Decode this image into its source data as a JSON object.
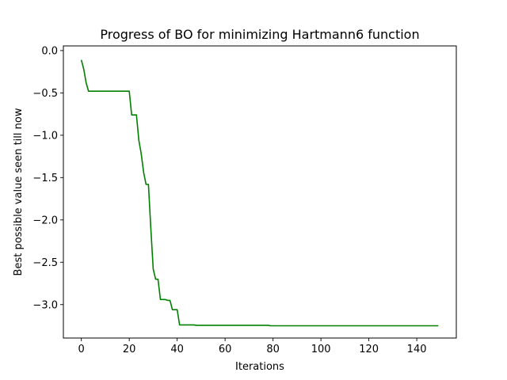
{
  "chart_data": {
    "type": "line",
    "title": "Progress of BO for minimizing Hartmann6 function",
    "xlabel": "Iterations",
    "ylabel": "Best possible value seen till now",
    "xlim": [
      -7.5,
      156.5
    ],
    "ylim": [
      -3.395,
      0.055
    ],
    "xticks": [
      0,
      20,
      40,
      60,
      80,
      100,
      120,
      140
    ],
    "yticks": [
      0.0,
      -0.5,
      -1.0,
      -1.5,
      -2.0,
      -2.5,
      -3.0
    ],
    "xtick_labels": [
      "0",
      "20",
      "40",
      "60",
      "80",
      "100",
      "120",
      "140"
    ],
    "ytick_labels": [
      "0.0",
      "−0.5",
      "−1.0",
      "−1.5",
      "−2.0",
      "−2.5",
      "−3.0"
    ],
    "grid": false,
    "legend": false,
    "line_color": "#008000",
    "series": [
      {
        "x": [
          0,
          1,
          2,
          3,
          4,
          5,
          6,
          7,
          8,
          9,
          10,
          11,
          12,
          13,
          14,
          15,
          16,
          17,
          18,
          19,
          20,
          21,
          22,
          23,
          24,
          25,
          26,
          27,
          28,
          29,
          30,
          31,
          32,
          33,
          34,
          35,
          36,
          37,
          38,
          39,
          40,
          41,
          42,
          43,
          44,
          45,
          46,
          47,
          48,
          60,
          70,
          78,
          79,
          90,
          100,
          110,
          120,
          130,
          140,
          149
        ],
        "y": [
          -0.11,
          -0.22,
          -0.38,
          -0.48,
          -0.48,
          -0.48,
          -0.48,
          -0.48,
          -0.48,
          -0.48,
          -0.48,
          -0.48,
          -0.48,
          -0.48,
          -0.48,
          -0.48,
          -0.48,
          -0.48,
          -0.48,
          -0.48,
          -0.48,
          -0.76,
          -0.76,
          -0.76,
          -1.06,
          -1.22,
          -1.44,
          -1.58,
          -1.58,
          -2.1,
          -2.58,
          -2.7,
          -2.7,
          -2.94,
          -2.94,
          -2.94,
          -2.95,
          -2.95,
          -3.06,
          -3.06,
          -3.06,
          -3.24,
          -3.24,
          -3.24,
          -3.24,
          -3.24,
          -3.24,
          -3.24,
          -3.245,
          -3.245,
          -3.245,
          -3.245,
          -3.25,
          -3.25,
          -3.25,
          -3.25,
          -3.25,
          -3.25,
          -3.25,
          -3.25
        ]
      }
    ]
  }
}
